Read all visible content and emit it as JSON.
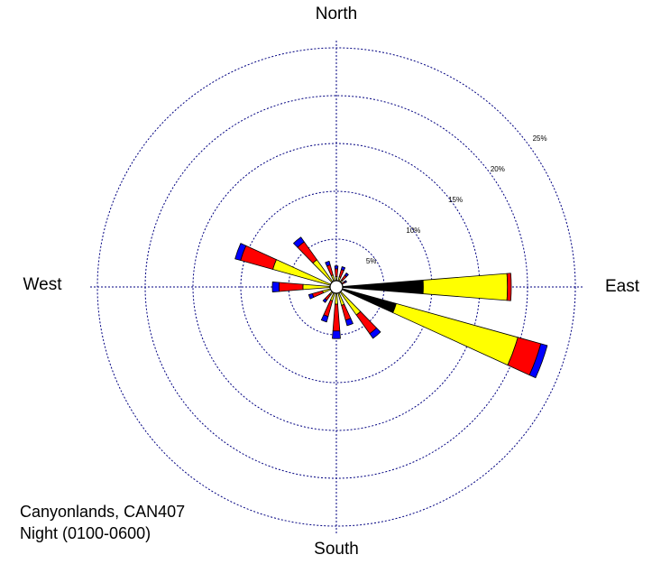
{
  "chart_data": {
    "type": "windrose",
    "directions": {
      "north": "North",
      "east": "East",
      "south": "South",
      "west": "West"
    },
    "annotations": [
      "Canyonlands, CAN407",
      "Night (0100-0600)"
    ],
    "x": [
      0,
      20,
      40,
      60,
      90,
      110,
      140,
      160,
      180,
      200,
      220,
      250,
      270,
      290,
      320,
      340
    ],
    "series": [
      {
        "color": "#000000",
        "values": [
          0.3,
          0.3,
          0.3,
          0.2,
          9.1,
          6.5,
          0.4,
          0.3,
          0.3,
          0.3,
          0.3,
          0.3,
          0.3,
          0.5,
          0.3,
          0.3
        ]
      },
      {
        "color": "#ffff00",
        "values": [
          0.8,
          0.8,
          0.6,
          0.4,
          8.8,
          13.2,
          3.2,
          1.7,
          1.5,
          1.2,
          0.7,
          1.2,
          3.2,
          6.4,
          3.2,
          1.0
        ]
      },
      {
        "color": "#ff0000",
        "values": [
          0.8,
          0.8,
          0.6,
          0.4,
          0.4,
          2.5,
          2.4,
          1.6,
          2.8,
          1.7,
          0.7,
          1.1,
          2.5,
          3.5,
          2.3,
          1.1
        ]
      },
      {
        "color": "#0000ff",
        "values": [
          0.3,
          0.3,
          0.3,
          0.2,
          0,
          0.7,
          0.6,
          0.6,
          0.8,
          0.6,
          0.3,
          0.4,
          0.7,
          0.6,
          0.6,
          0.4
        ]
      }
    ],
    "rlim": [
      0,
      25
    ],
    "rticks": [
      {
        "value": 5,
        "label": "5%"
      },
      {
        "value": 10,
        "label": "10%"
      },
      {
        "value": 15,
        "label": "15%"
      },
      {
        "value": 20,
        "label": "20%"
      },
      {
        "value": 25,
        "label": "25%"
      }
    ],
    "grid": true,
    "grid_color": "#000080"
  }
}
